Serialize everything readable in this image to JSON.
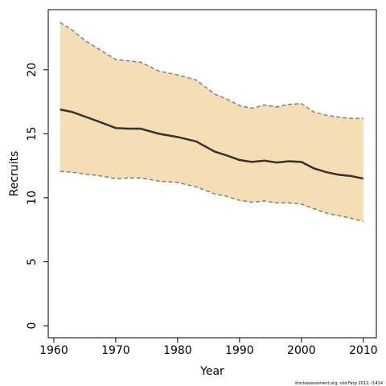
{
  "chart_data": {
    "type": "band-line",
    "xlabel": "Year",
    "ylabel": "Recruits",
    "note": "stockassessment.org, cod Farp 2012, r1414",
    "x": [
      1961,
      1963,
      1965,
      1967,
      1970,
      1972,
      1974,
      1977,
      1980,
      1983,
      1986,
      1988,
      1990,
      1992,
      1994,
      1996,
      1998,
      2000,
      2002,
      2004,
      2006,
      2008,
      2010
    ],
    "series": [
      {
        "color": "#333333",
        "values": [
          16.9,
          16.7,
          16.35,
          16.0,
          15.45,
          15.4,
          15.4,
          15.0,
          14.75,
          14.4,
          13.6,
          13.3,
          12.95,
          12.8,
          12.9,
          12.75,
          12.85,
          12.8,
          12.3,
          12.0,
          11.8,
          11.7,
          11.5
        ]
      },
      {
        "color": "#808080",
        "values": [
          23.7,
          23.1,
          22.3,
          21.7,
          20.8,
          20.7,
          20.6,
          19.9,
          19.6,
          19.2,
          18.1,
          17.7,
          17.2,
          17.0,
          17.25,
          17.1,
          17.3,
          17.35,
          16.7,
          16.45,
          16.3,
          16.2,
          16.2
        ]
      },
      {
        "color": "#808080",
        "values": [
          12.05,
          12.0,
          11.85,
          11.75,
          11.5,
          11.55,
          11.55,
          11.3,
          11.2,
          10.85,
          10.3,
          10.1,
          9.8,
          9.65,
          9.75,
          9.6,
          9.6,
          9.5,
          9.15,
          8.8,
          8.6,
          8.4,
          8.15
        ]
      }
    ],
    "band_color": "#f5deb3",
    "xlim": [
      1959.1,
      2012.1
    ],
    "ylim": [
      -0.94,
      24.7
    ],
    "xticks": [
      1960,
      1970,
      1980,
      1990,
      2000,
      2010
    ],
    "yticks": [
      0,
      5,
      10,
      15,
      20
    ]
  }
}
